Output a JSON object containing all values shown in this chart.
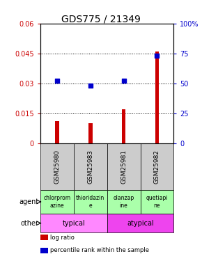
{
  "title": "GDS775 / 21349",
  "samples": [
    "GSM25980",
    "GSM25983",
    "GSM25981",
    "GSM25982"
  ],
  "log_ratio": [
    0.011,
    0.01,
    0.017,
    0.046
  ],
  "percentile_rank": [
    52,
    48,
    52,
    73
  ],
  "ylim_left": [
    0,
    0.06
  ],
  "ylim_right": [
    0,
    100
  ],
  "yticks_left": [
    0,
    0.015,
    0.03,
    0.045,
    0.06
  ],
  "ytick_labels_left": [
    "0",
    "0.015",
    "0.03",
    "0.045",
    "0.06"
  ],
  "yticks_right": [
    0,
    25,
    50,
    75,
    100
  ],
  "ytick_labels_right": [
    "0",
    "25",
    "50",
    "75",
    "100%"
  ],
  "bar_color": "#cc0000",
  "dot_color": "#0000cc",
  "agent_labels": [
    "chlorprom\nazine",
    "thioridazin\ne",
    "olanzap\nine",
    "quetiapi\nne"
  ],
  "agent_color": "#aaffaa",
  "other_groups": [
    {
      "label": "typical",
      "span": [
        0,
        2
      ],
      "color": "#ff88ff"
    },
    {
      "label": "atypical",
      "span": [
        2,
        4
      ],
      "color": "#ee44ee"
    }
  ],
  "legend_items": [
    {
      "label": "log ratio",
      "color": "#cc0000"
    },
    {
      "label": "percentile rank within the sample",
      "color": "#0000cc"
    }
  ],
  "grid_yticks": [
    0.015,
    0.03,
    0.045
  ],
  "bg_color": "#ffffff",
  "sample_row_color": "#cccccc",
  "bar_width": 0.12
}
